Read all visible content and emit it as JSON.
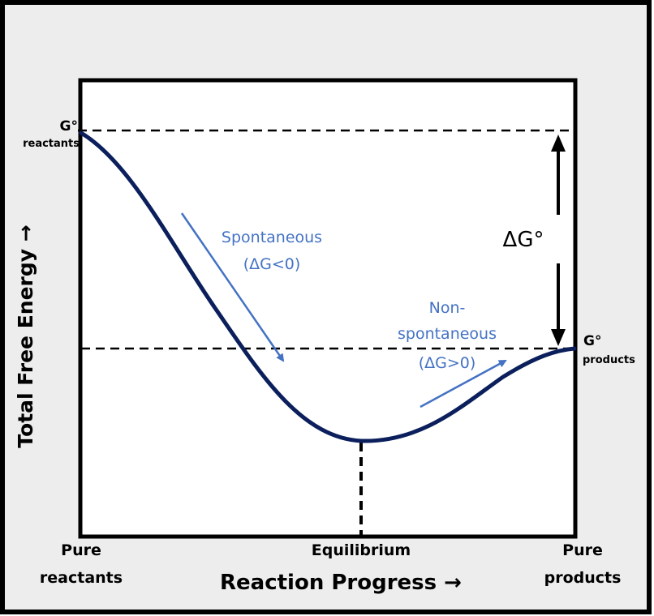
{
  "diagram": {
    "y_axis_label": "Total Free Energy →",
    "x_axis_label": "Reaction Progress →",
    "x_labels": {
      "start_line1": "Pure",
      "start_line2": "reactants",
      "middle": "Equilibrium",
      "end_line1": "Pure",
      "end_line2": "products"
    },
    "g_reactants": {
      "symbol": "G°",
      "sub": "reactants"
    },
    "g_products": {
      "symbol": "G°",
      "sub": "products"
    },
    "delta_g_label": "ΔG°",
    "spontaneous": {
      "line1": "Spontaneous",
      "line2": "(ΔG<0)"
    },
    "nonspontaneous": {
      "line1": "Non-",
      "line2": "spontaneous",
      "line3": "(ΔG>0)"
    },
    "colors": {
      "curve": "#0b1f5c",
      "annotation": "#4472c4",
      "background": "#ededed",
      "plot_bg": "#ffffff",
      "frame": "#000000"
    }
  }
}
